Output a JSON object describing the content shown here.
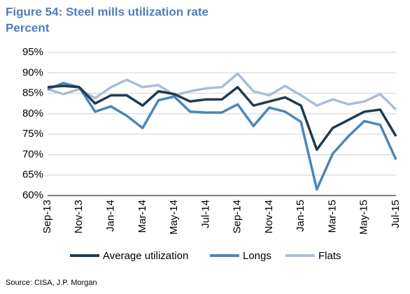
{
  "chart_data": {
    "type": "line",
    "title": "Figure 54: Steel mills utilization rate",
    "subtitle": "Percent",
    "source": "Source: CISA, J.P. Morgan",
    "categories": [
      "Sep-13",
      null,
      "Nov-13",
      null,
      "Jan-14",
      null,
      "Mar-14",
      null,
      "May-14",
      null,
      "Jul-14",
      null,
      "Sep-14",
      null,
      "Nov-14",
      null,
      "Jan-15",
      null,
      "Mar-15",
      null,
      "May-15",
      null,
      "Jul-15"
    ],
    "series": [
      {
        "name": "Average utilization",
        "color": "#1f3b50",
        "values": [
          86.5,
          86.8,
          86.5,
          82.5,
          84.5,
          84.5,
          82,
          85.5,
          84.8,
          83,
          83.5,
          83.5,
          86.5,
          82,
          83,
          84,
          82,
          71.2,
          76.5,
          78.5,
          80.5,
          81,
          74.5
        ]
      },
      {
        "name": "Longs",
        "color": "#4a86b8",
        "values": [
          86,
          87.5,
          86.5,
          80.5,
          81.8,
          79.5,
          76.5,
          83.3,
          84.2,
          80.5,
          80.3,
          80.3,
          82.3,
          77,
          81.5,
          80.5,
          78,
          61.5,
          70.2,
          74.5,
          78.2,
          77.3,
          68.8
        ]
      },
      {
        "name": "Flats",
        "color": "#a8bdd6",
        "values": [
          86,
          84.8,
          86,
          83.8,
          86.5,
          88.3,
          86.5,
          87,
          84.5,
          85.5,
          86.2,
          86.5,
          89.8,
          85.5,
          84.5,
          86.8,
          84.5,
          82,
          83.5,
          82.3,
          83,
          84.8,
          81
        ]
      }
    ],
    "ylim": [
      60,
      95
    ],
    "yticks": [
      {
        "value": 60,
        "label": "60%"
      },
      {
        "value": 65,
        "label": "65%"
      },
      {
        "value": 70,
        "label": "70%"
      },
      {
        "value": 75,
        "label": "75%"
      },
      {
        "value": 80,
        "label": "80%"
      },
      {
        "value": 85,
        "label": "85%"
      },
      {
        "value": 90,
        "label": "90%"
      },
      {
        "value": 95,
        "label": "95%"
      }
    ],
    "grid": true,
    "legend": "bottom"
  }
}
